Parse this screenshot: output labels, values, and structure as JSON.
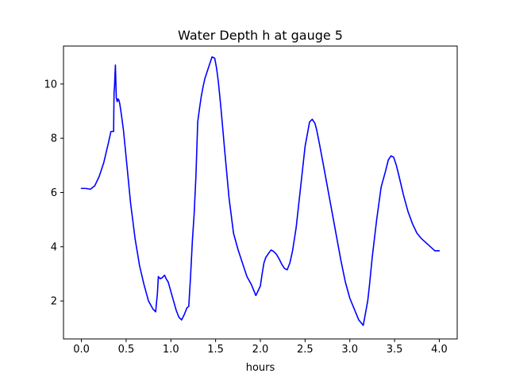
{
  "chart_data": {
    "type": "line",
    "title": "Water Depth h at gauge 5",
    "xlabel": "hours",
    "ylabel": "",
    "xlim": [
      -0.2,
      4.2
    ],
    "ylim": [
      0.6,
      11.4
    ],
    "xticks": [
      0.0,
      0.5,
      1.0,
      1.5,
      2.0,
      2.5,
      3.0,
      3.5,
      4.0
    ],
    "xtick_labels": [
      "0.0",
      "0.5",
      "1.0",
      "1.5",
      "2.0",
      "2.5",
      "3.0",
      "3.5",
      "4.0"
    ],
    "yticks": [
      2,
      4,
      6,
      8,
      10
    ],
    "ytick_labels": [
      "2",
      "4",
      "6",
      "8",
      "10"
    ],
    "grid": false,
    "series": [
      {
        "color": "#0000ff",
        "x": [
          0.0,
          0.05,
          0.1,
          0.15,
          0.2,
          0.25,
          0.3,
          0.33,
          0.36,
          0.365,
          0.37,
          0.38,
          0.39,
          0.4,
          0.41,
          0.42,
          0.43,
          0.45,
          0.47,
          0.5,
          0.55,
          0.6,
          0.65,
          0.7,
          0.75,
          0.8,
          0.83,
          0.85,
          0.86,
          0.88,
          0.9,
          0.93,
          0.95,
          0.97,
          1.0,
          1.03,
          1.06,
          1.09,
          1.12,
          1.15,
          1.18,
          1.2,
          1.22,
          1.24,
          1.26,
          1.28,
          1.3,
          1.32,
          1.34,
          1.36,
          1.38,
          1.4,
          1.43,
          1.46,
          1.49,
          1.51,
          1.53,
          1.56,
          1.6,
          1.65,
          1.7,
          1.75,
          1.8,
          1.85,
          1.9,
          1.95,
          2.0,
          2.02,
          2.04,
          2.06,
          2.09,
          2.12,
          2.15,
          2.18,
          2.21,
          2.24,
          2.27,
          2.3,
          2.33,
          2.36,
          2.4,
          2.45,
          2.5,
          2.55,
          2.58,
          2.61,
          2.63,
          2.66,
          2.7,
          2.75,
          2.8,
          2.85,
          2.9,
          2.95,
          3.0,
          3.05,
          3.1,
          3.15,
          3.2,
          3.22,
          3.25,
          3.3,
          3.35,
          3.4,
          3.43,
          3.46,
          3.49,
          3.52,
          3.55,
          3.6,
          3.65,
          3.7,
          3.75,
          3.8,
          3.85,
          3.9,
          3.95,
          4.0
        ],
        "y": [
          6.15,
          6.15,
          6.12,
          6.25,
          6.6,
          7.1,
          7.8,
          8.25,
          8.25,
          9.7,
          9.9,
          10.7,
          9.5,
          9.35,
          9.45,
          9.4,
          9.25,
          8.8,
          8.3,
          7.3,
          5.6,
          4.3,
          3.3,
          2.6,
          2.0,
          1.7,
          1.6,
          2.3,
          2.9,
          2.82,
          2.85,
          2.95,
          2.8,
          2.7,
          2.35,
          2.0,
          1.65,
          1.4,
          1.3,
          1.5,
          1.75,
          1.8,
          2.9,
          4.2,
          5.2,
          6.6,
          8.6,
          9.1,
          9.55,
          9.9,
          10.2,
          10.4,
          10.7,
          11.0,
          10.95,
          10.6,
          10.1,
          9.1,
          7.6,
          5.8,
          4.5,
          3.9,
          3.4,
          2.9,
          2.6,
          2.2,
          2.55,
          3.0,
          3.4,
          3.6,
          3.75,
          3.88,
          3.82,
          3.72,
          3.55,
          3.35,
          3.2,
          3.15,
          3.4,
          3.85,
          4.7,
          6.2,
          7.7,
          8.6,
          8.7,
          8.55,
          8.3,
          7.8,
          7.1,
          6.2,
          5.3,
          4.4,
          3.5,
          2.7,
          2.1,
          1.7,
          1.3,
          1.1,
          2.0,
          2.6,
          3.6,
          5.0,
          6.2,
          6.8,
          7.2,
          7.35,
          7.3,
          7.0,
          6.6,
          5.9,
          5.3,
          4.85,
          4.5,
          4.3,
          4.15,
          4.0,
          3.85,
          3.85
        ]
      }
    ]
  }
}
